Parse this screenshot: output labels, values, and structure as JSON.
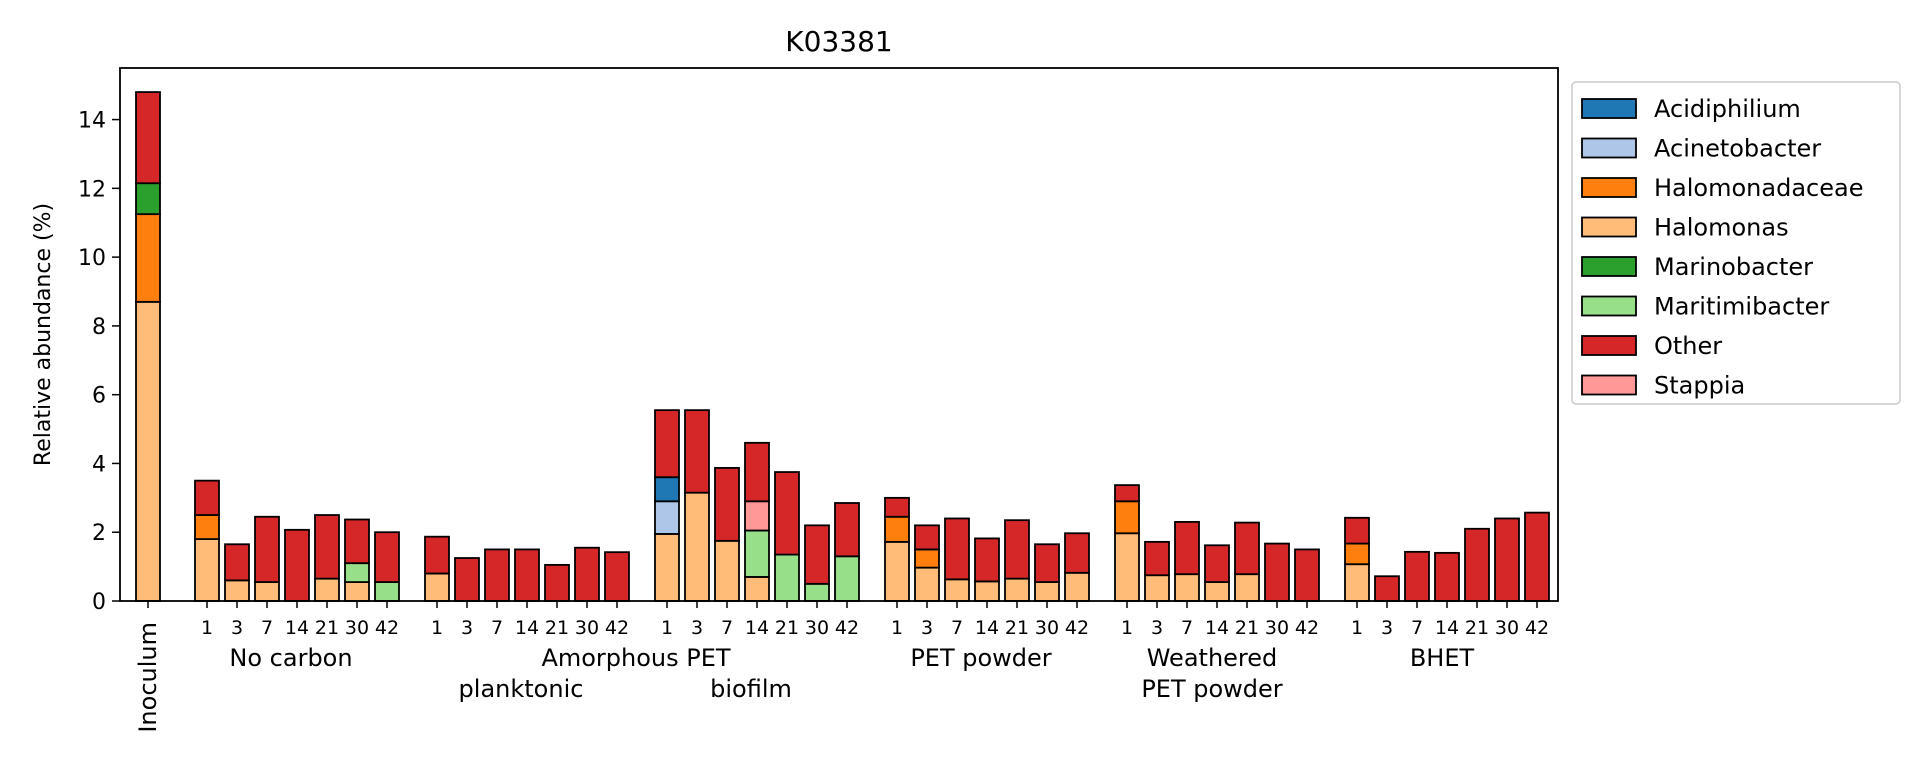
{
  "chart_data": {
    "type": "bar",
    "stacked": true,
    "title": "K03381",
    "ylabel": "Relative abundance (%)",
    "ylim": [
      0,
      15.5
    ],
    "yticks": [
      0,
      2,
      4,
      6,
      8,
      10,
      12,
      14
    ],
    "legend_position": "outside-right",
    "series": [
      {
        "name": "Acidiphilium",
        "color": "#1f77b4"
      },
      {
        "name": "Acinetobacter",
        "color": "#aec7e8"
      },
      {
        "name": "Halomonadaceae",
        "color": "#ff7f0e"
      },
      {
        "name": "Halomonas",
        "color": "#ffbb78"
      },
      {
        "name": "Marinobacter",
        "color": "#2ca02c"
      },
      {
        "name": "Maritimibacter",
        "color": "#98df8a"
      },
      {
        "name": "Other",
        "color": "#d62728"
      },
      {
        "name": "Stappia",
        "color": "#ff9896"
      }
    ],
    "inoculum": {
      "label": "Inoculum",
      "segments": {
        "Halomonas": 8.7,
        "Halomonadaceae": 2.55,
        "Marinobacter": 0.9,
        "Other": 2.65
      }
    },
    "groups": [
      {
        "label_lines": [
          "No carbon"
        ],
        "bars": [
          {
            "day": "1",
            "segments": {
              "Halomonas": 1.8,
              "Halomonadaceae": 0.7,
              "Other": 1.0
            }
          },
          {
            "day": "3",
            "segments": {
              "Halomonas": 0.6,
              "Other": 1.05
            }
          },
          {
            "day": "7",
            "segments": {
              "Halomonas": 0.55,
              "Other": 1.9
            }
          },
          {
            "day": "14",
            "segments": {
              "Other": 2.07
            }
          },
          {
            "day": "21",
            "segments": {
              "Halomonas": 0.65,
              "Other": 1.85
            }
          },
          {
            "day": "30",
            "segments": {
              "Halomonas": 0.55,
              "Maritimibacter": 0.55,
              "Other": 1.27
            }
          },
          {
            "day": "42",
            "segments": {
              "Maritimibacter": 0.55,
              "Other": 1.45
            }
          }
        ]
      },
      {
        "label_lines": [
          "Amorphous PET",
          "planktonic"
        ],
        "bars": [
          {
            "day": "1",
            "segments": {
              "Halomonas": 0.8,
              "Other": 1.07
            }
          },
          {
            "day": "3",
            "segments": {
              "Other": 1.25
            }
          },
          {
            "day": "7",
            "segments": {
              "Other": 1.5
            }
          },
          {
            "day": "14",
            "segments": {
              "Other": 1.5
            }
          },
          {
            "day": "21",
            "segments": {
              "Other": 1.05
            }
          },
          {
            "day": "30",
            "segments": {
              "Other": 1.55
            }
          },
          {
            "day": "42",
            "segments": {
              "Other": 1.42
            }
          }
        ]
      },
      {
        "label_lines": [
          "biofilm"
        ],
        "bars": [
          {
            "day": "1",
            "segments": {
              "Halomonas": 1.95,
              "Acinetobacter": 0.95,
              "Acidiphilium": 0.7,
              "Other": 1.95
            }
          },
          {
            "day": "3",
            "segments": {
              "Halomonas": 3.15,
              "Other": 2.4
            }
          },
          {
            "day": "7",
            "segments": {
              "Halomonas": 1.75,
              "Other": 2.12
            }
          },
          {
            "day": "14",
            "segments": {
              "Halomonas": 0.7,
              "Maritimibacter": 1.35,
              "Stappia": 0.85,
              "Other": 1.7
            }
          },
          {
            "day": "21",
            "segments": {
              "Maritimibacter": 1.35,
              "Other": 2.4
            }
          },
          {
            "day": "30",
            "segments": {
              "Maritimibacter": 0.5,
              "Other": 1.7
            }
          },
          {
            "day": "42",
            "segments": {
              "Maritimibacter": 1.3,
              "Other": 1.55
            }
          }
        ]
      },
      {
        "label_lines": [
          "PET powder"
        ],
        "bars": [
          {
            "day": "1",
            "segments": {
              "Halomonas": 1.72,
              "Halomonadaceae": 0.73,
              "Other": 0.55
            }
          },
          {
            "day": "3",
            "segments": {
              "Halomonas": 0.97,
              "Halomonadaceae": 0.53,
              "Other": 0.7
            }
          },
          {
            "day": "7",
            "segments": {
              "Halomonas": 0.63,
              "Other": 1.77
            }
          },
          {
            "day": "14",
            "segments": {
              "Halomonas": 0.57,
              "Other": 1.25
            }
          },
          {
            "day": "21",
            "segments": {
              "Halomonas": 0.65,
              "Other": 1.7
            }
          },
          {
            "day": "30",
            "segments": {
              "Halomonas": 0.55,
              "Other": 1.1
            }
          },
          {
            "day": "42",
            "segments": {
              "Halomonas": 0.82,
              "Other": 1.15
            }
          }
        ]
      },
      {
        "label_lines": [
          "Weathered",
          "PET powder"
        ],
        "bars": [
          {
            "day": "1",
            "segments": {
              "Halomonas": 1.97,
              "Halomonadaceae": 0.93,
              "Other": 0.47
            }
          },
          {
            "day": "3",
            "segments": {
              "Halomonas": 0.75,
              "Other": 0.97
            }
          },
          {
            "day": "7",
            "segments": {
              "Halomonas": 0.78,
              "Other": 1.52
            }
          },
          {
            "day": "14",
            "segments": {
              "Halomonas": 0.55,
              "Other": 1.07
            }
          },
          {
            "day": "21",
            "segments": {
              "Halomonas": 0.78,
              "Other": 1.5
            }
          },
          {
            "day": "30",
            "segments": {
              "Other": 1.67
            }
          },
          {
            "day": "42",
            "segments": {
              "Other": 1.5
            }
          }
        ]
      },
      {
        "label_lines": [
          "BHET"
        ],
        "bars": [
          {
            "day": "1",
            "segments": {
              "Halomonas": 1.07,
              "Halomonadaceae": 0.6,
              "Other": 0.75
            }
          },
          {
            "day": "3",
            "segments": {
              "Other": 0.72
            }
          },
          {
            "day": "7",
            "segments": {
              "Other": 1.43
            }
          },
          {
            "day": "14",
            "segments": {
              "Other": 1.4
            }
          },
          {
            "day": "21",
            "segments": {
              "Other": 2.1
            }
          },
          {
            "day": "30",
            "segments": {
              "Other": 2.4
            }
          },
          {
            "day": "42",
            "segments": {
              "Other": 2.57
            }
          }
        ]
      }
    ]
  }
}
